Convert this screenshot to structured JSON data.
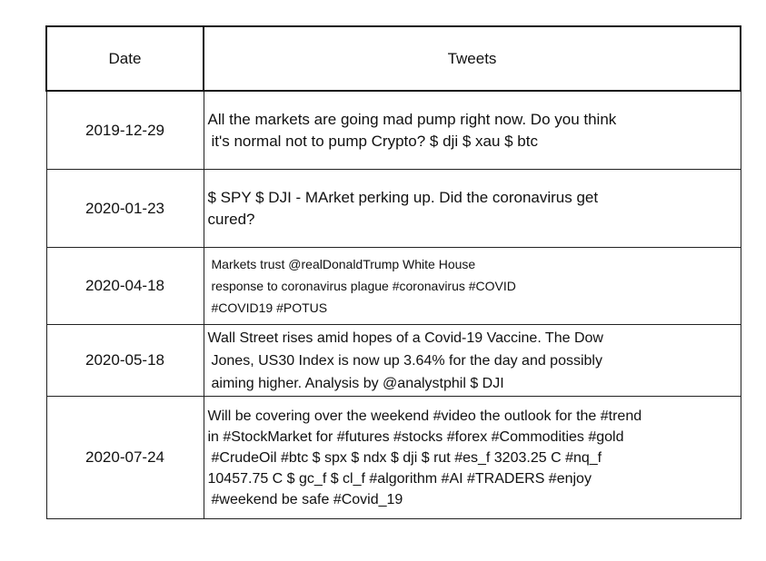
{
  "table": {
    "headers": [
      "Date",
      "Tweets"
    ],
    "rows": [
      {
        "date": "2019-12-29",
        "tweet_lines": [
          "All the markets are going mad pump right now. Do you think",
          "it's normal not to pump Crypto? $ dji $ xau $ btc"
        ]
      },
      {
        "date": "2020-01-23",
        "tweet_lines": [
          "$ SPY $ DJI - MArket perking up. Did the coronavirus get",
          "cured?"
        ]
      },
      {
        "date": "2020-04-18",
        "tweet_lines": [
          "Markets trust @realDonaldTrump White House",
          "response to coronavirus plague #coronavirus #COVID",
          "#COVID19 #POTUS"
        ]
      },
      {
        "date": "2020-05-18",
        "tweet_lines": [
          "Wall Street rises amid hopes of a Covid-19 Vaccine. The Dow",
          "Jones, US30 Index is now up 3.64% for the day and possibly",
          "aiming higher. Analysis by @analystphil $ DJI"
        ]
      },
      {
        "date": "2020-07-24",
        "tweet_lines": [
          "Will be covering over the weekend #video the outlook for the #trend",
          "in #StockMarket for #futures #stocks #forex #Commodities #gold",
          "#CrudeOil #btc $ spx $ ndx $ dji $ rut #es_f 3203.25 C #nq_f",
          "10457.75 C $ gc_f $ cl_f #algorithm #AI #TRADERS #enjoy",
          "#weekend be safe #Covid_19"
        ]
      }
    ]
  }
}
